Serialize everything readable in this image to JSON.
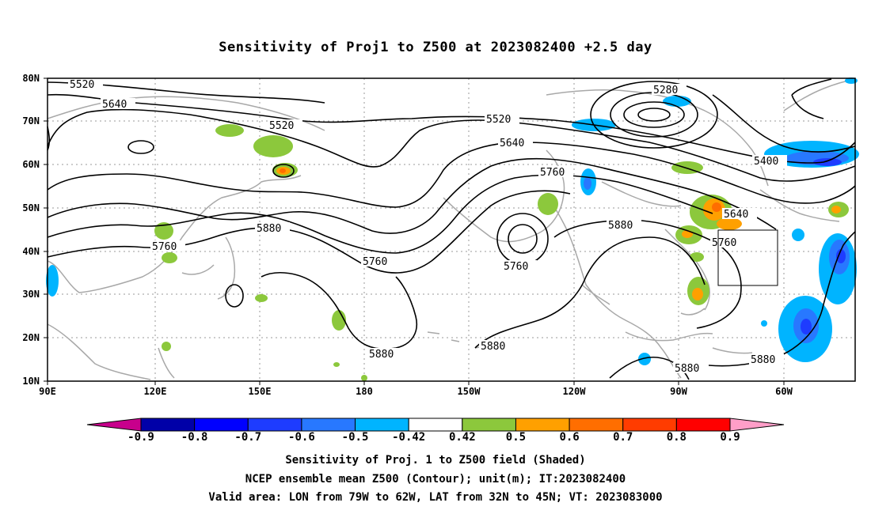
{
  "title": "Sensitivity of Proj1 to Z500 at 2023082400 +2.5 day",
  "lat_labels": [
    "80N",
    "70N",
    "60N",
    "50N",
    "40N",
    "30N",
    "20N",
    "10N"
  ],
  "lon_labels": [
    "90E",
    "120E",
    "150E",
    "180",
    "150W",
    "120W",
    "90W",
    "60W"
  ],
  "contour_labels": [
    "5520",
    "5640",
    "5520",
    "5520",
    "5640",
    "5760",
    "5760",
    "5880",
    "5760",
    "5760",
    "5880",
    "5280",
    "5400",
    "5640",
    "5760",
    "5880",
    "5880",
    "5880",
    "5880"
  ],
  "colorbar": {
    "labels": [
      "-0.9",
      "-0.8",
      "-0.7",
      "-0.6",
      "-0.5",
      "-0.42",
      "0.42",
      "0.5",
      "0.6",
      "0.7",
      "0.8",
      "0.9"
    ],
    "colors": [
      "#0000a8",
      "#0000ff",
      "#1e3cff",
      "#2878ff",
      "#00b4ff",
      "#ffffff",
      "#8cc83c",
      "#ffa000",
      "#ff6e00",
      "#ff3c00",
      "#ff0000"
    ],
    "low_end_color": "#c8008c",
    "high_end_color": "#ff9ec8"
  },
  "captions": [
    "Sensitivity of Proj. 1 to Z500 field (Shaded)",
    "NCEP ensemble mean Z500 (Contour); unit(m); IT:2023082400",
    "Valid area: LON from 79W to 62W, LAT from 32N to 45N; VT: 2023083000"
  ]
}
